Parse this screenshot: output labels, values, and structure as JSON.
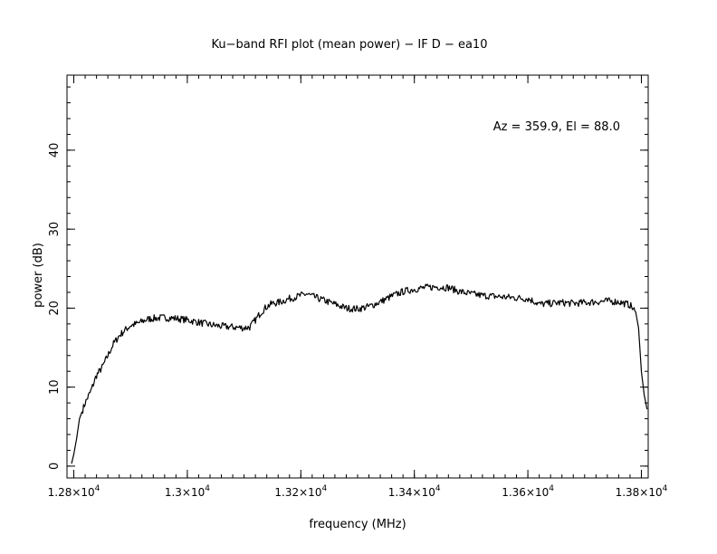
{
  "chart_data": {
    "type": "line",
    "title": "Ku−band RFI plot (mean power) − IF D − ea10",
    "xlabel": "frequency (MHz)",
    "ylabel": "power (dB)",
    "annotation": "Az = 359.9, El = 88.0",
    "xlim": [
      12788,
      13812
    ],
    "ylim": [
      -1.5,
      49.5
    ],
    "x_ticks": [
      {
        "value": 12800,
        "mantissa": "1.28×10",
        "exp": "4"
      },
      {
        "value": 13000,
        "mantissa": "1.3×10",
        "exp": "4"
      },
      {
        "value": 13200,
        "mantissa": "1.32×10",
        "exp": "4"
      },
      {
        "value": 13400,
        "mantissa": "1.34×10",
        "exp": "4"
      },
      {
        "value": 13600,
        "mantissa": "1.36×10",
        "exp": "4"
      },
      {
        "value": 13800,
        "mantissa": "1.38×10",
        "exp": "4"
      }
    ],
    "y_ticks": [
      0,
      10,
      20,
      30,
      40
    ],
    "series": [
      {
        "color": "#000000",
        "x": [
          12796,
          12800,
          12805,
          12810,
          12820,
          12830,
          12840,
          12850,
          12860,
          12870,
          12880,
          12890,
          12900,
          12910,
          12920,
          12930,
          12940,
          12960,
          12980,
          13000,
          13020,
          13040,
          13060,
          13080,
          13100,
          13110,
          13120,
          13130,
          13140,
          13150,
          13160,
          13180,
          13200,
          13210,
          13220,
          13240,
          13260,
          13280,
          13300,
          13320,
          13340,
          13360,
          13380,
          13400,
          13420,
          13440,
          13460,
          13480,
          13500,
          13520,
          13540,
          13560,
          13580,
          13600,
          13610,
          13620,
          13640,
          13660,
          13680,
          13700,
          13720,
          13740,
          13760,
          13770,
          13780,
          13790,
          13795,
          13800,
          13805,
          13810
        ],
        "y": [
          0.3,
          1.5,
          3.5,
          6.0,
          8.0,
          9.5,
          11.5,
          12.5,
          14.0,
          15.5,
          16.5,
          17.2,
          17.8,
          18.0,
          18.3,
          18.6,
          18.7,
          18.8,
          18.7,
          18.5,
          18.2,
          17.9,
          17.7,
          17.6,
          17.5,
          17.6,
          18.5,
          19.5,
          20.2,
          20.6,
          20.7,
          21.2,
          21.6,
          21.8,
          21.5,
          21.0,
          20.5,
          20.0,
          19.9,
          20.2,
          20.8,
          21.5,
          22.1,
          22.4,
          22.6,
          22.7,
          22.6,
          22.1,
          21.8,
          21.6,
          21.5,
          21.4,
          21.3,
          21.2,
          20.9,
          20.5,
          20.6,
          20.7,
          20.6,
          20.7,
          20.8,
          20.9,
          20.8,
          20.6,
          20.4,
          19.5,
          17.5,
          12.0,
          9.0,
          7.2
        ]
      }
    ]
  }
}
